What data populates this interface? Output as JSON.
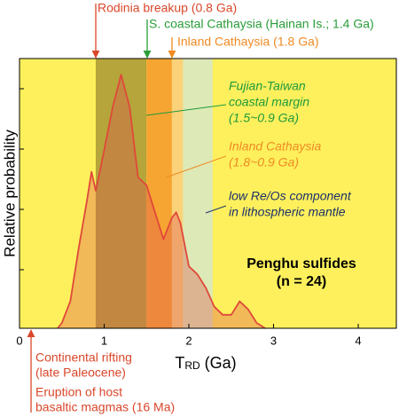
{
  "chart_data": {
    "type": "area",
    "x_label": {
      "main": "T",
      "sub": "RD",
      "unit": " (Ga)"
    },
    "y_label": "Relative probability",
    "x": [
      0.45,
      0.5,
      0.6,
      0.7,
      0.8,
      0.85,
      0.9,
      1.0,
      1.1,
      1.2,
      1.3,
      1.4,
      1.5,
      1.6,
      1.7,
      1.8,
      1.85,
      1.9,
      2.0,
      2.1,
      2.2,
      2.3,
      2.4,
      2.5,
      2.6,
      2.7,
      2.8,
      2.9
    ],
    "values": [
      0,
      0.02,
      0.1,
      0.3,
      0.48,
      0.58,
      0.51,
      0.66,
      0.82,
      0.94,
      0.82,
      0.56,
      0.53,
      0.43,
      0.33,
      0.41,
      0.43,
      0.39,
      0.23,
      0.2,
      0.15,
      0.08,
      0.05,
      0.05,
      0.1,
      0.07,
      0.02,
      0
    ],
    "color": "#e0483a",
    "fill": "#d9534f",
    "background": "#fdf05c",
    "bands": [
      {
        "from": 0.9,
        "to": 1.5,
        "color": "#b5a53a"
      },
      {
        "from": 1.5,
        "to": 1.8,
        "color": "#f7a532"
      },
      {
        "from": 1.8,
        "to": 1.93,
        "color": "#fbd27a"
      },
      {
        "from": 1.93,
        "to": 2.28,
        "color": "#dde9b6"
      }
    ],
    "xlim": [
      0,
      4.45
    ],
    "ylim": [
      0,
      1
    ],
    "xticks": [
      0,
      1,
      2,
      3,
      4
    ],
    "top_annotations": [
      "Rodinia breakup (0.8 Ga)",
      "S. coastal Cathaysia (Hainan Is.; 1.4 Ga)",
      "Inland Cathaysia (1.8 Ga)"
    ],
    "inner_annotations": [
      [
        "Fujian-Taiwan",
        "coastal margin",
        "(1.5~0.9 Ga)"
      ],
      [
        "Inland Cathaysia",
        "(1.8~0.9 Ga)"
      ],
      [
        "low Re/Os component",
        "in lithospheric mantle"
      ]
    ],
    "sample_label": [
      "Penghu sulfides",
      "(n = 24)"
    ],
    "bottom_annotations": [
      [
        "Continental rifting",
        "(late Paleocene)"
      ],
      [
        "Eruption of host",
        "basaltic magmas (16 Ma)"
      ]
    ]
  }
}
